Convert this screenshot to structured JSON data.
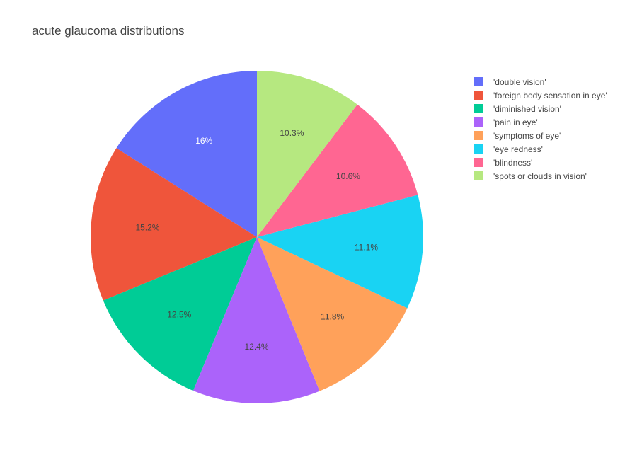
{
  "chart_data": {
    "type": "pie",
    "title": "acute glaucoma distributions",
    "labels": [
      "'double vision'",
      "'foreign body sensation in eye'",
      "'diminished vision'",
      "'pain in eye'",
      "'symptoms of eye'",
      "'eye redness'",
      "'blindness'",
      "'spots or clouds in vision'"
    ],
    "values": [
      16,
      15.2,
      12.5,
      12.4,
      11.8,
      11.1,
      10.6,
      10.3
    ],
    "percent_labels": [
      "16%",
      "15.2%",
      "12.5%",
      "12.4%",
      "11.8%",
      "11.1%",
      "10.6%",
      "10.3%"
    ],
    "colors": [
      "#636efa",
      "#ef553b",
      "#00cc96",
      "#ab63fa",
      "#ffa15a",
      "#19d3f3",
      "#ff6692",
      "#b6e880"
    ],
    "direction": "counterclockwise",
    "legend_position": "top-right"
  }
}
